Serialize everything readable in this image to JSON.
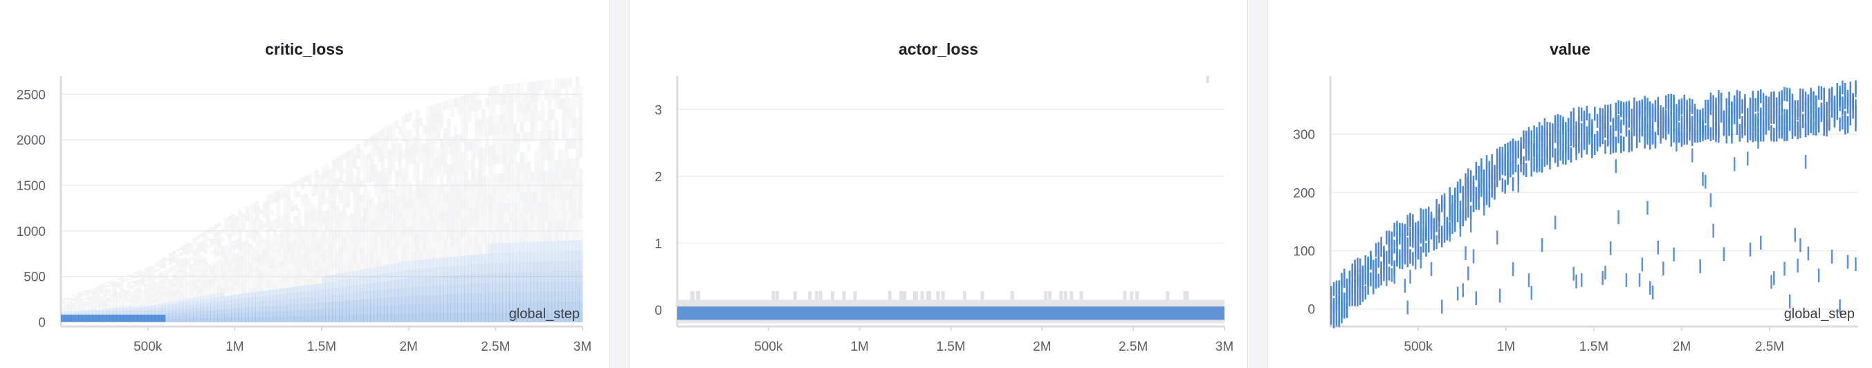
{
  "charts": [
    {
      "title": "critic_loss",
      "chart_data": {
        "type": "heatmap",
        "title": "critic_loss",
        "xlabel": "global_step",
        "ylabel": "",
        "xlim": [
          0,
          3000000
        ],
        "ylim": [
          -50,
          2700
        ],
        "x_ticks": [
          {
            "v": 500000,
            "label": "500k"
          },
          {
            "v": 1000000,
            "label": "1M"
          },
          {
            "v": 1500000,
            "label": "1.5M"
          },
          {
            "v": 2000000,
            "label": "2M"
          },
          {
            "v": 2500000,
            "label": "2.5M"
          },
          {
            "v": 3000000,
            "label": "3M"
          }
        ],
        "y_ticks": [
          {
            "v": 0,
            "label": "0"
          },
          {
            "v": 500,
            "label": "500"
          },
          {
            "v": 1000,
            "label": "1000"
          },
          {
            "v": 1500,
            "label": "1500"
          },
          {
            "v": 2000,
            "label": "2000"
          },
          {
            "v": 2500,
            "label": "2500"
          }
        ],
        "grid": true,
        "accent": "#4a86d3",
        "band": {
          "x": [
            0,
            500000,
            1000000,
            1500000,
            2000000,
            2500000,
            3000000
          ],
          "max": [
            250,
            600,
            1200,
            1700,
            2300,
            2600,
            2700
          ],
          "density_max": [
            120,
            200,
            350,
            500,
            700,
            900,
            1000
          ]
        }
      }
    },
    {
      "title": "actor_loss",
      "chart_data": {
        "type": "heatmap",
        "title": "actor_loss",
        "xlabel": "",
        "ylabel": "",
        "xlim": [
          0,
          3000000
        ],
        "ylim": [
          -0.25,
          3.5
        ],
        "x_ticks": [
          {
            "v": 500000,
            "label": "500k"
          },
          {
            "v": 1000000,
            "label": "1M"
          },
          {
            "v": 1500000,
            "label": "1.5M"
          },
          {
            "v": 2000000,
            "label": "2M"
          },
          {
            "v": 2500000,
            "label": "2.5M"
          },
          {
            "v": 3000000,
            "label": "3M"
          }
        ],
        "y_ticks": [
          {
            "v": 0,
            "label": "0"
          },
          {
            "v": 1,
            "label": "1"
          },
          {
            "v": 2,
            "label": "2"
          },
          {
            "v": 3,
            "label": "3"
          }
        ],
        "grid": true,
        "accent": "#4a86d3",
        "band": {
          "low": -0.2,
          "high": 0.15,
          "core_low": -0.15,
          "core_high": 0.05
        },
        "outlier": {
          "x": 2900000,
          "y": 3.45
        }
      }
    },
    {
      "title": "value",
      "chart_data": {
        "type": "heatmap",
        "title": "value",
        "xlabel": "global_step",
        "ylabel": "",
        "xlim": [
          0,
          3000000
        ],
        "ylim": [
          -30,
          400
        ],
        "x_ticks": [
          {
            "v": 500000,
            "label": "500k"
          },
          {
            "v": 1000000,
            "label": "1M"
          },
          {
            "v": 1500000,
            "label": "1.5M"
          },
          {
            "v": 2000000,
            "label": "2M"
          },
          {
            "v": 2500000,
            "label": "2.5M"
          }
        ],
        "y_ticks": [
          {
            "v": 0,
            "label": "0"
          },
          {
            "v": 100,
            "label": "100"
          },
          {
            "v": 200,
            "label": "200"
          },
          {
            "v": 300,
            "label": "300"
          }
        ],
        "grid": true,
        "accent": "#4a86d3",
        "trend": {
          "x": [
            0,
            200000,
            400000,
            600000,
            800000,
            1000000,
            1200000,
            1400000,
            1600000,
            1800000,
            2000000,
            2200000,
            2400000,
            2600000,
            2800000,
            3000000
          ],
          "y": [
            0,
            60,
            110,
            140,
            200,
            240,
            280,
            300,
            310,
            320,
            325,
            330,
            330,
            335,
            340,
            350
          ]
        }
      }
    }
  ]
}
